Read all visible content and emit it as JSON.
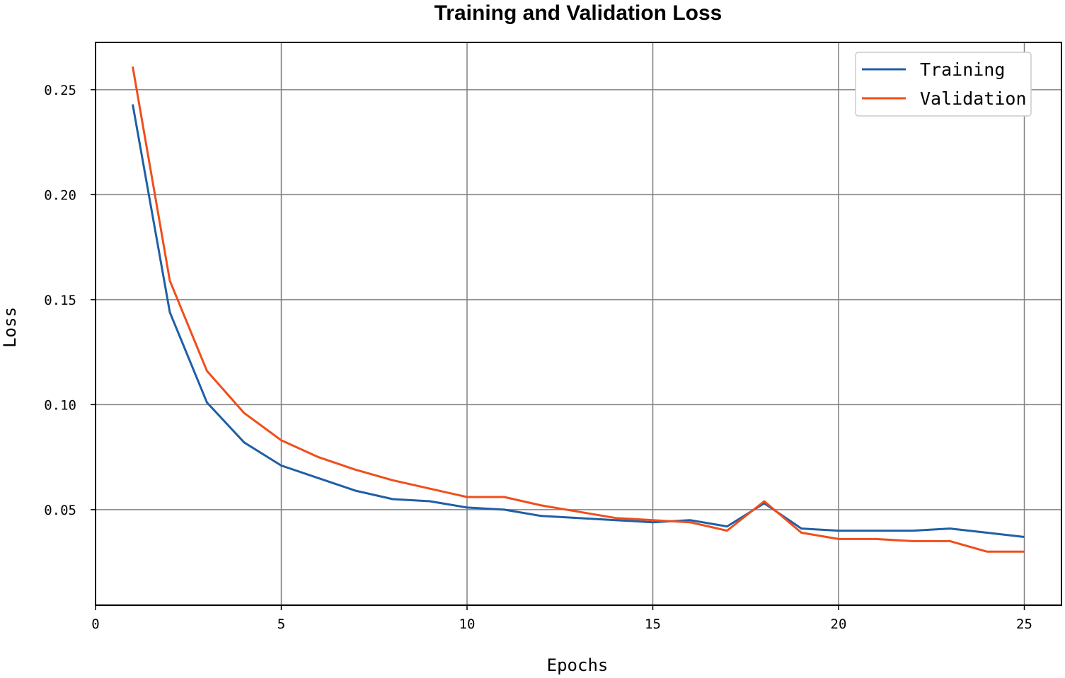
{
  "chart_data": {
    "type": "line",
    "title": "Training and Validation Loss",
    "xlabel": "Epochs",
    "ylabel": "Loss",
    "xlim": [
      0,
      26
    ],
    "ylim": [
      0.0045,
      0.2725
    ],
    "xticks": [
      0,
      5,
      10,
      15,
      20,
      25
    ],
    "xtick_labels": [
      "0",
      "5",
      "10",
      "15",
      "20",
      "25"
    ],
    "yticks": [
      0.05,
      0.1,
      0.15,
      0.2,
      0.25
    ],
    "ytick_labels": [
      "0.05",
      "0.10",
      "0.15",
      "0.20",
      "0.25"
    ],
    "grid": true,
    "legend_position": "top-right",
    "x": [
      1,
      2,
      3,
      4,
      5,
      6,
      7,
      8,
      9,
      10,
      11,
      12,
      13,
      14,
      15,
      16,
      17,
      18,
      19,
      20,
      21,
      22,
      23,
      24,
      25
    ],
    "series": [
      {
        "name": "Training",
        "color": "#1f5fa6",
        "values": [
          0.243,
          0.144,
          0.101,
          0.082,
          0.071,
          0.065,
          0.059,
          0.055,
          0.054,
          0.051,
          0.05,
          0.047,
          0.046,
          0.045,
          0.044,
          0.045,
          0.042,
          0.053,
          0.041,
          0.04,
          0.04,
          0.04,
          0.041,
          0.039,
          0.037
        ]
      },
      {
        "name": "Validation",
        "color": "#f04e1b",
        "values": [
          0.261,
          0.159,
          0.116,
          0.096,
          0.083,
          0.075,
          0.069,
          0.064,
          0.06,
          0.056,
          0.056,
          0.052,
          0.049,
          0.046,
          0.045,
          0.044,
          0.04,
          0.054,
          0.039,
          0.036,
          0.036,
          0.035,
          0.035,
          0.03,
          0.03
        ]
      }
    ]
  }
}
